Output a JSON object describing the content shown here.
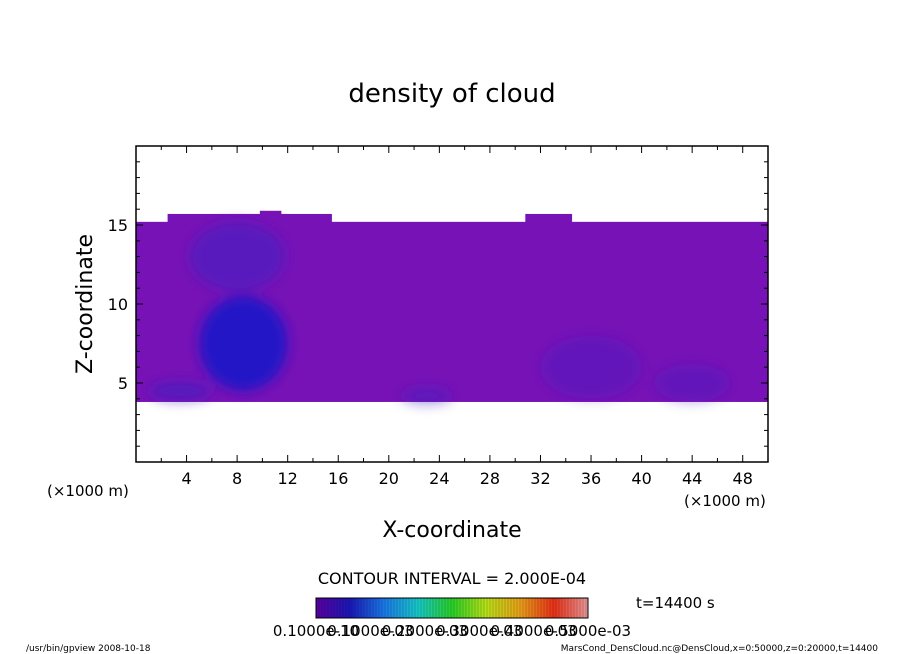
{
  "chart_data": {
    "type": "heatmap",
    "title": "density of cloud",
    "xlabel": "X-coordinate",
    "ylabel": "Z-coordinate",
    "x_unit_left": "(×1000 m)",
    "x_unit_right": "(×1000 m)",
    "xlim": [
      0,
      50
    ],
    "ylim": [
      0,
      20
    ],
    "x_ticks": [
      4,
      8,
      12,
      16,
      20,
      24,
      28,
      32,
      36,
      40,
      44,
      48
    ],
    "y_ticks": [
      5,
      10,
      15
    ],
    "cloud_layer": {
      "z_bottom": 3.8,
      "z_top": 15.2,
      "top_bumps": [
        {
          "x0": 2.5,
          "x1": 15.5,
          "z": 15.7
        },
        {
          "x0": 9.8,
          "x1": 11.5,
          "z": 15.9
        },
        {
          "x0": 30.8,
          "x1": 34.5,
          "z": 15.7
        }
      ]
    },
    "blobs": [
      {
        "x": 8.5,
        "z": 7.5,
        "rx": 3.5,
        "rz": 3.0,
        "intensity": 0.9
      },
      {
        "x": 8.0,
        "z": 13.0,
        "rx": 3.8,
        "rz": 2.2,
        "intensity": 0.45
      },
      {
        "x": 3.5,
        "z": 4.5,
        "rx": 2.5,
        "rz": 0.6,
        "intensity": 0.5
      },
      {
        "x": 23.0,
        "z": 4.2,
        "rx": 2.0,
        "rz": 0.5,
        "intensity": 0.4
      },
      {
        "x": 36.0,
        "z": 6.0,
        "rx": 4.0,
        "rz": 2.0,
        "intensity": 0.25
      },
      {
        "x": 44.0,
        "z": 5.0,
        "rx": 3.0,
        "rz": 1.2,
        "intensity": 0.25
      }
    ],
    "contour_interval": "CONTOUR INTERVAL = 2.000E-04",
    "time_label": "t=14400 s",
    "colorbar_labels": [
      "0.1000e-10",
      "0.1000e-03",
      "0.2000e-03",
      "0.3000e-03",
      "0.4000e-03",
      "0.5000e-03"
    ],
    "colorbar_colors": [
      "#5a00a0",
      "#1a18b8",
      "#1a78e8",
      "#18c8c8",
      "#28d028",
      "#b8e018",
      "#e8a018",
      "#e83018",
      "#e89898"
    ],
    "colors": {
      "cloud_base": "#7712b6",
      "cloud_light": "#8a1ac0",
      "cloud_dark": "#3e1ec2",
      "cloud_deep": "#2212c6"
    }
  },
  "footer": {
    "left": "/usr/bin/gpview  2008-10-18",
    "right": "MarsCond_DensCloud.nc@DensCloud,x=0:50000,z=0:20000,t=14400"
  }
}
